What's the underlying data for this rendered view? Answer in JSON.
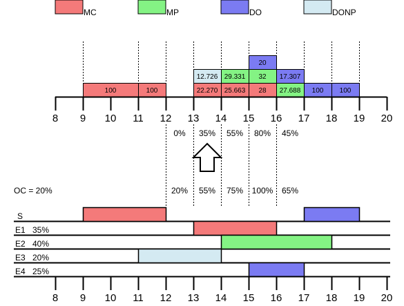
{
  "legend": [
    {
      "label": "MC",
      "color": "#f47a7a"
    },
    {
      "label": "MP",
      "color": "#84f384"
    },
    {
      "label": "DO",
      "color": "#7b7bf2"
    },
    {
      "label": "DONP",
      "color": "#d4eaf2"
    }
  ],
  "axis_ticks": [
    "8",
    "9",
    "10",
    "11",
    "12",
    "13",
    "14",
    "15",
    "16",
    "17",
    "18",
    "19",
    "20"
  ],
  "top_blocks": [
    {
      "cat": "MC",
      "start": 9,
      "end": 11,
      "row": 0,
      "label": "100"
    },
    {
      "cat": "MC",
      "start": 11,
      "end": 12,
      "row": 0,
      "label": "100"
    },
    {
      "cat": "MC",
      "start": 13,
      "end": 14,
      "row": 0,
      "label": "22.270"
    },
    {
      "cat": "DONP",
      "start": 13,
      "end": 14,
      "row": 1,
      "label": "12.726"
    },
    {
      "cat": "MC",
      "start": 14,
      "end": 15,
      "row": 0,
      "label": "25.663"
    },
    {
      "cat": "MP",
      "start": 14,
      "end": 15,
      "row": 1,
      "label": "29.331"
    },
    {
      "cat": "MC",
      "start": 15,
      "end": 16,
      "row": 0,
      "label": "28"
    },
    {
      "cat": "MP",
      "start": 15,
      "end": 16,
      "row": 1,
      "label": "32"
    },
    {
      "cat": "DO",
      "start": 15,
      "end": 16,
      "row": 2,
      "label": "20"
    },
    {
      "cat": "MP",
      "start": 16,
      "end": 17,
      "row": 0,
      "label": "27.688"
    },
    {
      "cat": "DO",
      "start": 16,
      "end": 17,
      "row": 1,
      "label": "17.307"
    },
    {
      "cat": "DO",
      "start": 17,
      "end": 18,
      "row": 0,
      "label": "100"
    },
    {
      "cat": "DO",
      "start": 18,
      "end": 19,
      "row": 0,
      "label": "100"
    }
  ],
  "upper_percents": [
    {
      "at": 12,
      "text": "0%"
    },
    {
      "at": 13,
      "text": "35%"
    },
    {
      "at": 14,
      "text": "55%"
    },
    {
      "at": 15,
      "text": "80%"
    },
    {
      "at": 16,
      "text": "45%"
    }
  ],
  "oc_label": "OC = 20%",
  "lower_percents": [
    {
      "at": 12,
      "text": "20%"
    },
    {
      "at": 13,
      "text": "55%"
    },
    {
      "at": 14,
      "text": "75%"
    },
    {
      "at": 15,
      "text": "100%"
    },
    {
      "at": 16,
      "text": "65%"
    }
  ],
  "rows": [
    {
      "label": "S",
      "pct": "",
      "bars": [
        {
          "cat": "MC",
          "start": 9,
          "end": 12
        },
        {
          "cat": "DO",
          "start": 17,
          "end": 19
        }
      ]
    },
    {
      "label": "E1",
      "pct": "35%",
      "bars": [
        {
          "cat": "MC",
          "start": 13,
          "end": 16
        }
      ]
    },
    {
      "label": "E2",
      "pct": "40%",
      "bars": [
        {
          "cat": "MP",
          "start": 14,
          "end": 18
        }
      ]
    },
    {
      "label": "E3",
      "pct": "20%",
      "bars": [
        {
          "cat": "DONP",
          "start": 11,
          "end": 14
        }
      ]
    },
    {
      "label": "E4",
      "pct": "25%",
      "bars": [
        {
          "cat": "DO",
          "start": 15,
          "end": 17
        }
      ]
    }
  ]
}
